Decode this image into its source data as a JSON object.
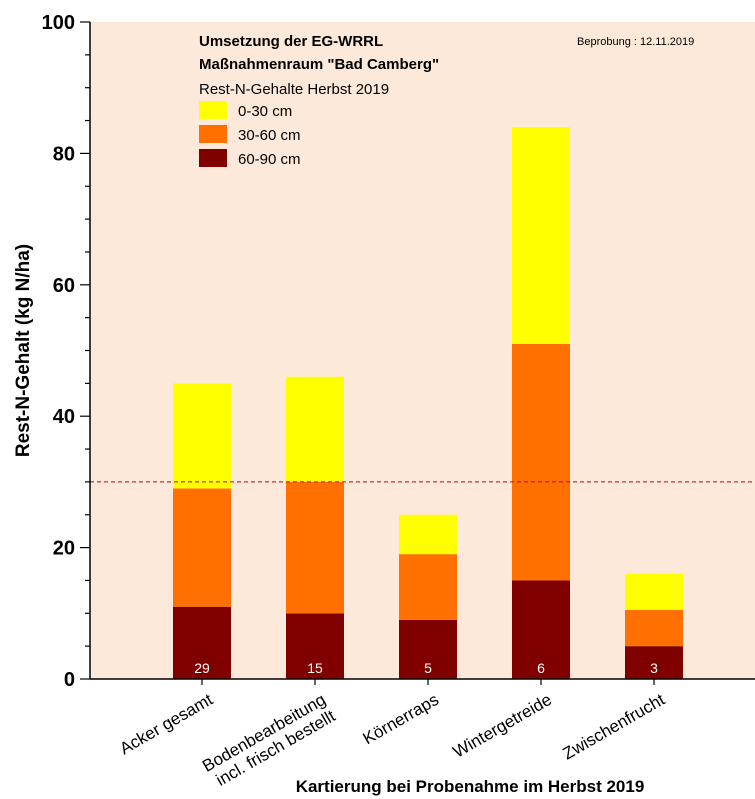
{
  "chart_data": {
    "type": "bar",
    "stacked": true,
    "title_lines": [
      "Umsetzung der EG-WRRL",
      "Maßnahmenraum \"Bad Camberg\""
    ],
    "subtitle": "Rest-N-Gehalte Herbst 2019",
    "sampling_note": "Beprobung : 12.11.2019",
    "categories": [
      [
        "Acker gesamt"
      ],
      [
        "Bodenbearbeitung",
        "incl. frisch bestellt"
      ],
      [
        "Körnerraps"
      ],
      [
        "Wintergetreide"
      ],
      [
        "Zwischenfrucht"
      ]
    ],
    "sample_counts": [
      "29",
      "15",
      "5",
      "6",
      "3"
    ],
    "series": [
      {
        "name": "60-90 cm",
        "color": "#800000",
        "values": [
          11,
          10,
          9,
          15,
          5
        ]
      },
      {
        "name": "30-60 cm",
        "color": "#FF7000",
        "values": [
          18,
          20,
          10,
          36,
          5.5
        ]
      },
      {
        "name": "0-30 cm",
        "color": "#FFFF00",
        "values": [
          16,
          16,
          6,
          33,
          5.5
        ]
      }
    ],
    "legend_order": [
      "0-30 cm",
      "30-60 cm",
      "60-90 cm"
    ],
    "reference_line": {
      "value": 30,
      "color": "#cc0000",
      "style": "dashed"
    },
    "xlabel": "Kartierung bei Probenahme im Herbst 2019",
    "ylabel": "Rest-N-Gehalt (kg N/ha)",
    "ylim": [
      0,
      100
    ],
    "yticks": [
      0,
      20,
      40,
      60,
      80,
      100
    ],
    "y_minor_step": 5,
    "plot_background": "#FDE9D9",
    "legend_position": "top-left",
    "grid": false
  }
}
